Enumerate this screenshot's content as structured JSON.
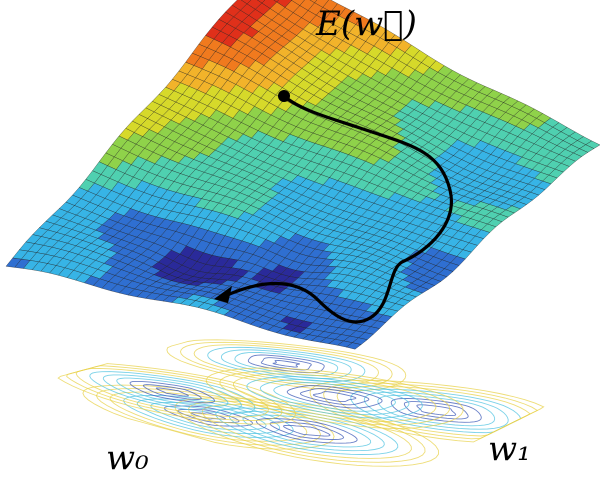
{
  "labels": {
    "energy": "E(w⃗)",
    "axis_w0": "w₀",
    "axis_w1": "w₁"
  },
  "colors": {
    "contour_blue": "#3a57b5",
    "contour_cyan": "#4fc3e0",
    "contour_yellow": "#e8d24a",
    "path_line": "#000000",
    "grid_line": "#1a1a1a"
  },
  "colormap": [
    "#2a2a9a",
    "#2f6fd1",
    "#37b4e6",
    "#4fd0b0",
    "#8fd24a",
    "#d6d92a",
    "#f2b32a",
    "#f07a1e",
    "#e0301a",
    "#8c1010"
  ]
}
